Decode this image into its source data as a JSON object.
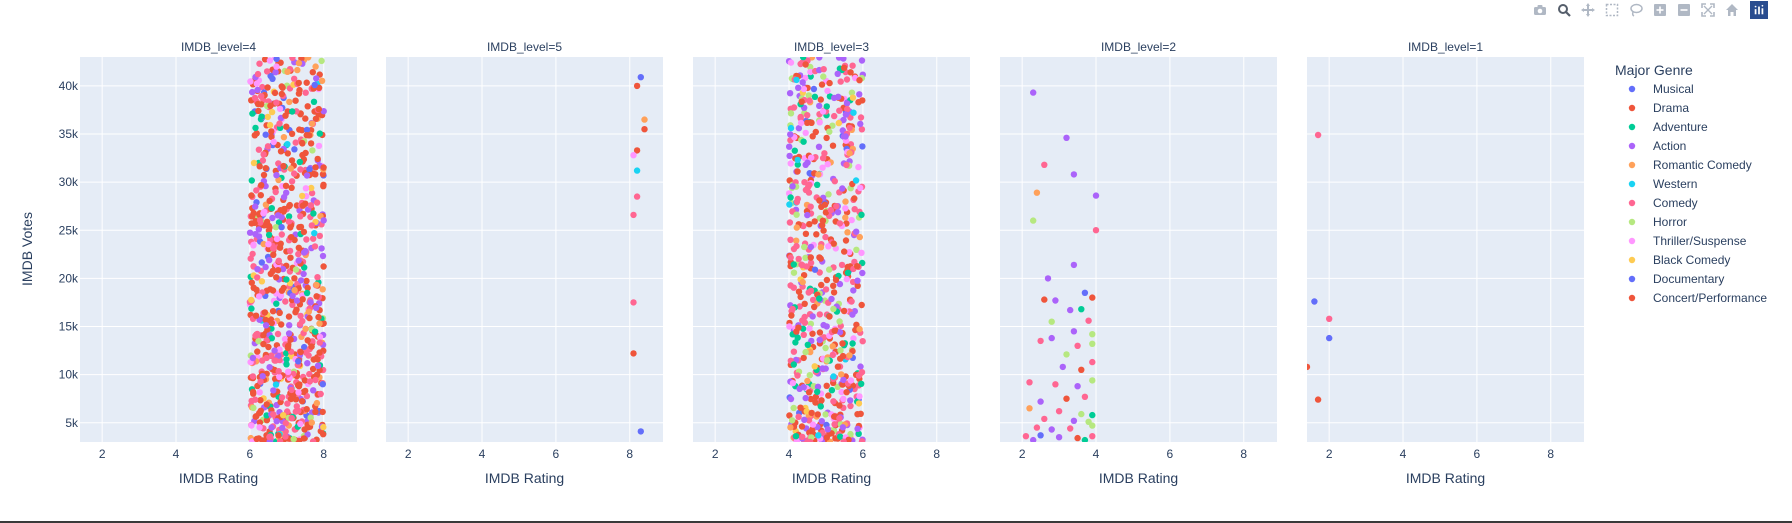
{
  "toolbar": {
    "buttons": [
      {
        "icon": "camera-icon",
        "label": "Download plot as a png"
      },
      {
        "icon": "zoom-icon",
        "label": "Zoom"
      },
      {
        "icon": "pan-icon",
        "label": "Pan"
      },
      {
        "icon": "box-select-icon",
        "label": "Box Select"
      },
      {
        "icon": "lasso-select-icon",
        "label": "Lasso Select"
      },
      {
        "icon": "zoom-in-icon",
        "label": "Zoom in"
      },
      {
        "icon": "zoom-out-icon",
        "label": "Zoom out"
      },
      {
        "icon": "autoscale-icon",
        "label": "Autoscale"
      },
      {
        "icon": "reset-axes-icon",
        "label": "Reset axes"
      }
    ],
    "logo_icon": "plotly-logo-icon"
  },
  "chart_data": {
    "type": "scatter",
    "facet_titles": [
      "IMDB_level=4",
      "IMDB_level=5",
      "IMDB_level=3",
      "IMDB_level=2",
      "IMDB_level=1"
    ],
    "xlabel": "IMDB Rating",
    "ylabel": "IMDB Votes",
    "xlim": [
      1.4,
      8.9
    ],
    "ylim": [
      3000,
      43000
    ],
    "x_ticks": [
      2,
      4,
      6,
      8
    ],
    "y_ticks": [
      5000,
      10000,
      15000,
      20000,
      25000,
      30000,
      35000,
      40000
    ],
    "y_tick_labels": [
      "5k",
      "10k",
      "15k",
      "20k",
      "25k",
      "30k",
      "35k",
      "40k"
    ],
    "grid": true,
    "legend_title": "Major Genre",
    "legend_position": "right",
    "background": "#e5ecf6",
    "series": [
      {
        "name": "Musical",
        "color": "#636efa"
      },
      {
        "name": "Drama",
        "color": "#ef553b"
      },
      {
        "name": "Adventure",
        "color": "#00cc96"
      },
      {
        "name": "Action",
        "color": "#ab63fa"
      },
      {
        "name": "Romantic Comedy",
        "color": "#ffa15a"
      },
      {
        "name": "Western",
        "color": "#19d3f3"
      },
      {
        "name": "Comedy",
        "color": "#ff6692"
      },
      {
        "name": "Horror",
        "color": "#b6e880"
      },
      {
        "name": "Thriller/Suspense",
        "color": "#ff97ff"
      },
      {
        "name": "Black Comedy",
        "color": "#fecb52"
      },
      {
        "name": "Documentary",
        "color": "#636efa"
      },
      {
        "name": "Concert/Performance",
        "color": "#ef553b"
      }
    ],
    "points": {
      "IMDB_level=4": {
        "x_range": [
          6.0,
          8.0
        ],
        "y_range": [
          3000,
          43000
        ],
        "count": 850,
        "genre_weights": [
          2,
          30,
          5,
          10,
          4,
          1,
          18,
          3,
          6,
          2,
          1,
          1
        ]
      },
      "IMDB_level=5": [
        {
          "x": 8.3,
          "y": 40900,
          "g": 10
        },
        {
          "x": 8.2,
          "y": 40000,
          "g": 1
        },
        {
          "x": 8.4,
          "y": 36500,
          "g": 4
        },
        {
          "x": 8.4,
          "y": 35500,
          "g": 1
        },
        {
          "x": 8.2,
          "y": 33300,
          "g": 1
        },
        {
          "x": 8.1,
          "y": 32800,
          "g": 8
        },
        {
          "x": 8.2,
          "y": 31200,
          "g": 5
        },
        {
          "x": 8.2,
          "y": 28500,
          "g": 6
        },
        {
          "x": 8.1,
          "y": 26600,
          "g": 6
        },
        {
          "x": 8.1,
          "y": 17500,
          "g": 6
        },
        {
          "x": 8.1,
          "y": 12200,
          "g": 1
        },
        {
          "x": 8.3,
          "y": 4100,
          "g": 0
        }
      ],
      "IMDB_level=3": {
        "x_range": [
          4.0,
          6.0
        ],
        "y_range": [
          3000,
          43000
        ],
        "count": 700,
        "genre_weights": [
          2,
          22,
          5,
          12,
          4,
          1,
          20,
          8,
          6,
          2,
          1,
          1
        ]
      },
      "IMDB_level=2": [
        {
          "x": 2.3,
          "y": 39300,
          "g": 3
        },
        {
          "x": 3.2,
          "y": 34600,
          "g": 3
        },
        {
          "x": 2.6,
          "y": 31800,
          "g": 6
        },
        {
          "x": 3.4,
          "y": 30800,
          "g": 3
        },
        {
          "x": 2.4,
          "y": 28900,
          "g": 4
        },
        {
          "x": 4.0,
          "y": 28600,
          "g": 3
        },
        {
          "x": 2.3,
          "y": 26000,
          "g": 7
        },
        {
          "x": 4.0,
          "y": 25000,
          "g": 6
        },
        {
          "x": 3.4,
          "y": 21400,
          "g": 3
        },
        {
          "x": 2.7,
          "y": 20000,
          "g": 3
        },
        {
          "x": 3.7,
          "y": 18500,
          "g": 0
        },
        {
          "x": 2.6,
          "y": 17800,
          "g": 1
        },
        {
          "x": 2.9,
          "y": 17700,
          "g": 3
        },
        {
          "x": 3.3,
          "y": 16700,
          "g": 3
        },
        {
          "x": 3.6,
          "y": 16800,
          "g": 2
        },
        {
          "x": 3.9,
          "y": 18000,
          "g": 1
        },
        {
          "x": 2.8,
          "y": 15500,
          "g": 7
        },
        {
          "x": 3.8,
          "y": 15600,
          "g": 6
        },
        {
          "x": 3.4,
          "y": 14500,
          "g": 3
        },
        {
          "x": 3.9,
          "y": 14200,
          "g": 7
        },
        {
          "x": 2.5,
          "y": 13500,
          "g": 6
        },
        {
          "x": 2.8,
          "y": 13800,
          "g": 3
        },
        {
          "x": 3.5,
          "y": 13000,
          "g": 6
        },
        {
          "x": 3.9,
          "y": 13200,
          "g": 7
        },
        {
          "x": 3.2,
          "y": 12100,
          "g": 7
        },
        {
          "x": 3.9,
          "y": 11300,
          "g": 6
        },
        {
          "x": 3.1,
          "y": 10800,
          "g": 3
        },
        {
          "x": 3.6,
          "y": 10500,
          "g": 1
        },
        {
          "x": 2.2,
          "y": 9200,
          "g": 6
        },
        {
          "x": 2.9,
          "y": 9000,
          "g": 6
        },
        {
          "x": 3.5,
          "y": 8800,
          "g": 3
        },
        {
          "x": 3.9,
          "y": 9400,
          "g": 7
        },
        {
          "x": 2.5,
          "y": 7200,
          "g": 3
        },
        {
          "x": 3.2,
          "y": 7500,
          "g": 1
        },
        {
          "x": 3.7,
          "y": 7700,
          "g": 6
        },
        {
          "x": 2.2,
          "y": 6500,
          "g": 4
        },
        {
          "x": 3.0,
          "y": 6200,
          "g": 6
        },
        {
          "x": 3.6,
          "y": 5900,
          "g": 7
        },
        {
          "x": 3.9,
          "y": 5800,
          "g": 2
        },
        {
          "x": 2.6,
          "y": 5400,
          "g": 6
        },
        {
          "x": 3.4,
          "y": 5200,
          "g": 3
        },
        {
          "x": 3.8,
          "y": 5100,
          "g": 7
        },
        {
          "x": 2.4,
          "y": 4500,
          "g": 6
        },
        {
          "x": 2.8,
          "y": 4300,
          "g": 3
        },
        {
          "x": 3.3,
          "y": 4400,
          "g": 6
        },
        {
          "x": 3.9,
          "y": 4700,
          "g": 7
        },
        {
          "x": 2.1,
          "y": 3600,
          "g": 6
        },
        {
          "x": 2.5,
          "y": 3700,
          "g": 0
        },
        {
          "x": 3.0,
          "y": 3500,
          "g": 3
        },
        {
          "x": 3.5,
          "y": 3400,
          "g": 1
        },
        {
          "x": 3.9,
          "y": 3600,
          "g": 6
        },
        {
          "x": 2.3,
          "y": 3200,
          "g": 3
        },
        {
          "x": 3.7,
          "y": 3200,
          "g": 2
        }
      ],
      "IMDB_level=1": [
        {
          "x": 1.7,
          "y": 34900,
          "g": 6
        },
        {
          "x": 1.6,
          "y": 17600,
          "g": 0
        },
        {
          "x": 2.0,
          "y": 15800,
          "g": 6
        },
        {
          "x": 2.0,
          "y": 13800,
          "g": 0
        },
        {
          "x": 1.4,
          "y": 10800,
          "g": 1
        },
        {
          "x": 1.7,
          "y": 7400,
          "g": 1
        }
      ]
    }
  }
}
